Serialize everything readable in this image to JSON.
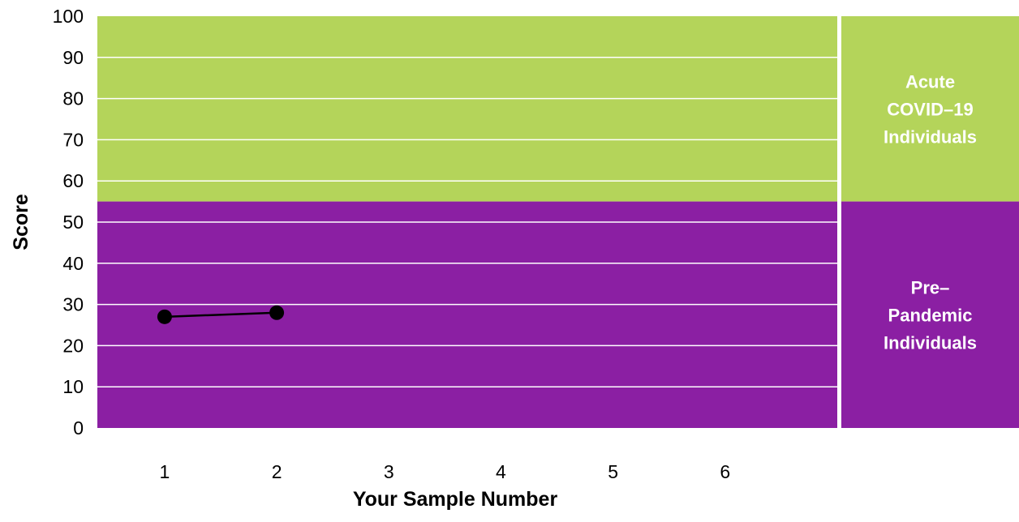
{
  "chart_data": {
    "type": "line",
    "xlabel": "Your Sample Number",
    "ylabel": "Score",
    "x_ticks": [
      "1",
      "2",
      "3",
      "4",
      "5",
      "6"
    ],
    "y_ticks": [
      "0",
      "10",
      "20",
      "30",
      "40",
      "50",
      "60",
      "70",
      "80",
      "90",
      "100"
    ],
    "ylim": [
      0,
      100
    ],
    "xlim": [
      0.4,
      7.0
    ],
    "series": [
      {
        "x": [
          1,
          2
        ],
        "y": [
          27,
          28
        ],
        "color": "#000000"
      }
    ],
    "bands": [
      {
        "label_lines": [
          "Acute",
          "COVID–19",
          "Individuals"
        ],
        "from": 55,
        "to": 100,
        "color": "#b4d45a"
      },
      {
        "label_lines": [
          "Pre–",
          "Pandemic",
          "Individuals"
        ],
        "from": 0,
        "to": 55,
        "color": "#8b1fa3"
      }
    ],
    "grid": true,
    "grid_color": "#ffffff"
  }
}
